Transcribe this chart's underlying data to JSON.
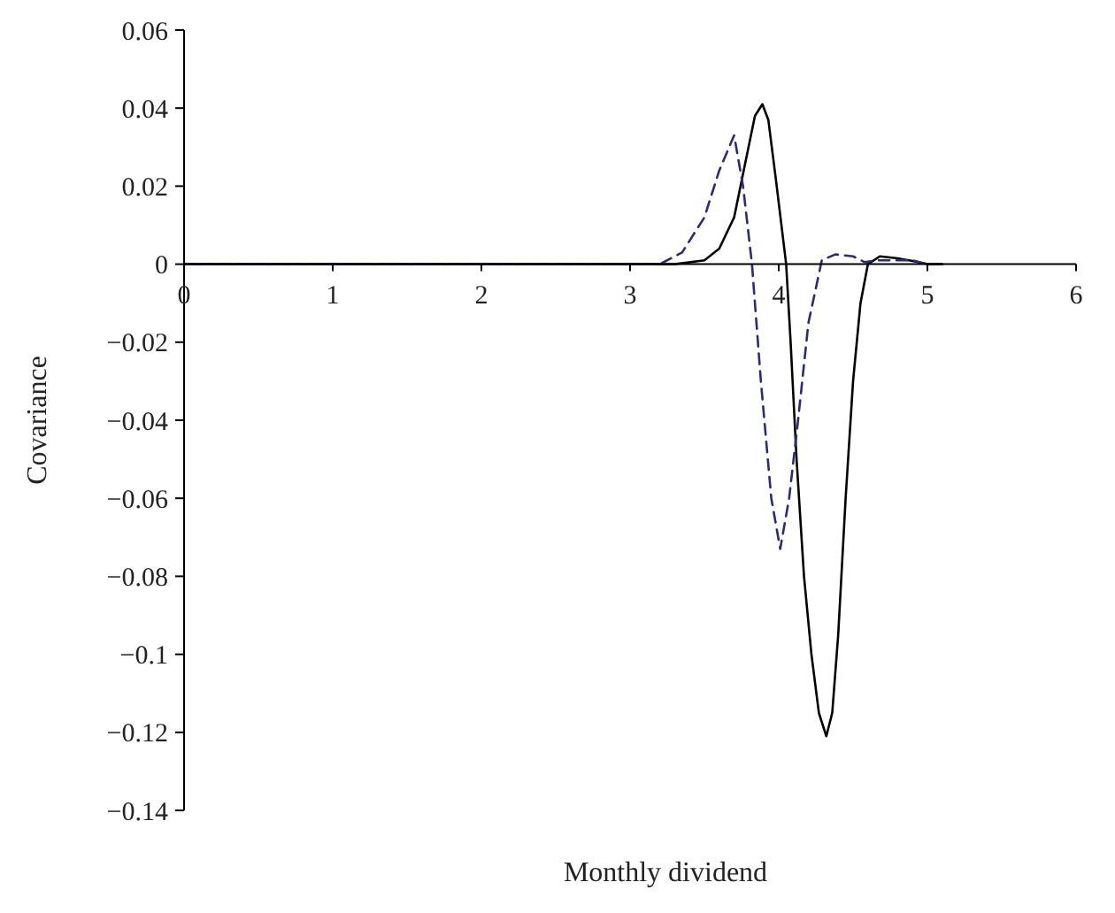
{
  "chart_data": {
    "type": "line",
    "xlabel": "Monthly dividend",
    "ylabel": "Covariance",
    "xlim": [
      0,
      6
    ],
    "xticks": [
      0,
      1,
      2,
      3,
      4,
      5,
      6
    ],
    "ylim": [
      -0.14,
      0.06
    ],
    "yticks": [
      0.06,
      0.04,
      0.02,
      0,
      {
        "value": -0.02,
        "label": "−0.02"
      },
      {
        "value": -0.04,
        "label": "−0.04"
      },
      {
        "value": -0.06,
        "label": "−0.06"
      },
      {
        "value": -0.08,
        "label": "−0.08"
      },
      {
        "value": -0.1,
        "label": "−0.1"
      },
      {
        "value": -0.12,
        "label": "−0.12"
      },
      {
        "value": -0.14,
        "label": "−0.14"
      }
    ],
    "series": [
      {
        "color": "#000000",
        "line_style": "solid",
        "x": [
          0,
          3.3,
          3.5,
          3.6,
          3.7,
          3.77,
          3.84,
          3.89,
          3.93,
          3.98,
          4.05,
          4.08,
          4.12,
          4.17,
          4.22,
          4.27,
          4.32,
          4.36,
          4.4,
          4.45,
          4.5,
          4.55,
          4.6,
          4.68,
          4.8,
          4.9,
          5.0,
          5.1
        ],
        "values": [
          0,
          0,
          0.001,
          0.004,
          0.012,
          0.025,
          0.038,
          0.041,
          0.037,
          0.022,
          0,
          -0.02,
          -0.05,
          -0.08,
          -0.1,
          -0.115,
          -0.121,
          -0.115,
          -0.095,
          -0.06,
          -0.03,
          -0.01,
          0,
          0.002,
          0.0015,
          0.0008,
          0,
          0
        ]
      },
      {
        "color": "#2b2b7a",
        "line_style": "dashed",
        "x": [
          0,
          3.2,
          3.35,
          3.5,
          3.6,
          3.7,
          3.76,
          3.82,
          3.88,
          3.95,
          4.01,
          4.07,
          4.13,
          4.2,
          4.29,
          4.38,
          4.5,
          4.58,
          4.65,
          4.9,
          5.0
        ],
        "values": [
          0,
          0,
          0.003,
          0.012,
          0.024,
          0.033,
          0.02,
          0,
          -0.03,
          -0.06,
          -0.073,
          -0.06,
          -0.04,
          -0.015,
          0.001,
          0.0025,
          0.002,
          0.0005,
          0.001,
          0.001,
          0
        ]
      }
    ]
  }
}
